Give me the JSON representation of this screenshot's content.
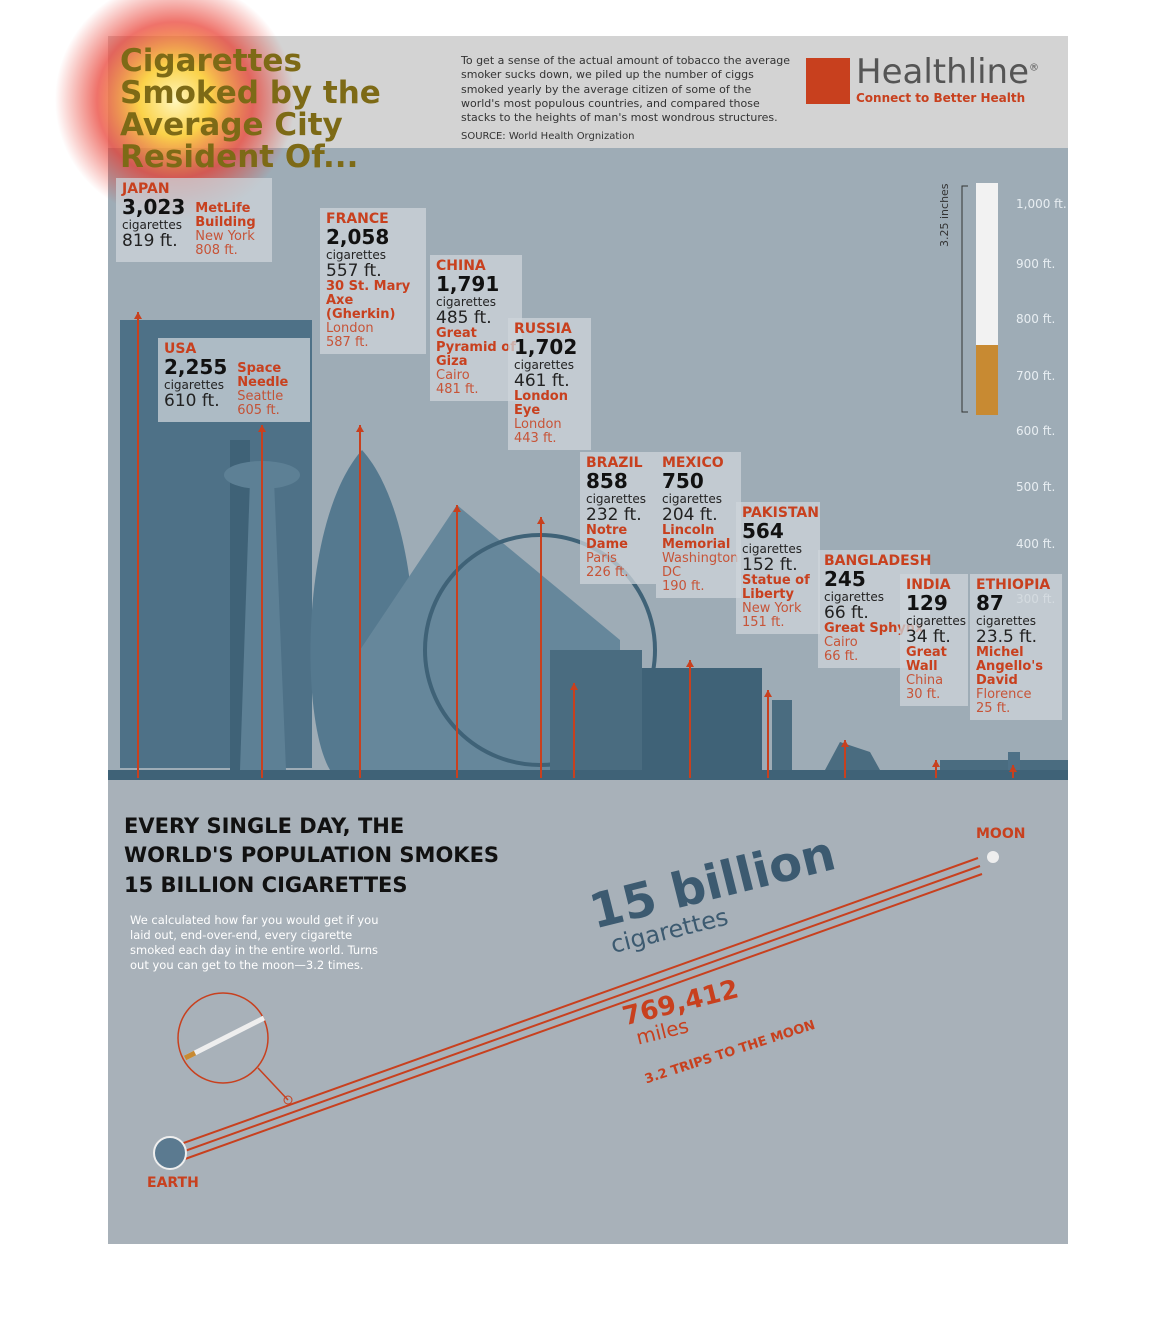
{
  "header": {
    "title": "Cigarettes Smoked by the Average City Resident Of...",
    "intro": "To get a sense of the actual amount of tobacco the average smoker sucks down, we piled up the number of ciggs smoked yearly by the average citizen of some of the world's most populous countries, and compared those stacks to the heights of man's most wondrous structures.",
    "source": "SOURCE: World Health Orgnization",
    "brand": "Healthline",
    "brand_mark": "®",
    "tagline": "Connect to Better Health"
  },
  "scale": {
    "label": "3.25 inches",
    "ticks": [
      "1,000 ft.",
      "900 ft.",
      "800 ft.",
      "700 ft.",
      "600 ft.",
      "500 ft.",
      "400 ft.",
      "300 ft."
    ]
  },
  "countries": [
    {
      "name": "JAPAN",
      "count": "3,023",
      "unit": "cigarettes",
      "height": "819 ft.",
      "landmark": "MetLife Building",
      "city": "New York",
      "landmark_height": "808 ft."
    },
    {
      "name": "USA",
      "count": "2,255",
      "unit": "cigarettes",
      "height": "610 ft.",
      "landmark": "Space Needle",
      "city": "Seattle",
      "landmark_height": "605 ft."
    },
    {
      "name": "FRANCE",
      "count": "2,058",
      "unit": "cigarettes",
      "height": "557 ft.",
      "landmark": "30 St. Mary Axe (Gherkin)",
      "city": "London",
      "landmark_height": "587 ft."
    },
    {
      "name": "CHINA",
      "count": "1,791",
      "unit": "cigarettes",
      "height": "485 ft.",
      "landmark": "Great Pyramid of Giza",
      "city": "Cairo",
      "landmark_height": "481 ft."
    },
    {
      "name": "RUSSIA",
      "count": "1,702",
      "unit": "cigarettes",
      "height": "461 ft.",
      "landmark": "London Eye",
      "city": "London",
      "landmark_height": "443 ft."
    },
    {
      "name": "BRAZIL",
      "count": "858",
      "unit": "cigarettes",
      "height": "232 ft.",
      "landmark": "Notre Dame",
      "city": "Paris",
      "landmark_height": "226 ft."
    },
    {
      "name": "MEXICO",
      "count": "750",
      "unit": "cigarettes",
      "height": "204 ft.",
      "landmark": "Lincoln Memorial",
      "city": "Washington DC",
      "landmark_height": "190 ft."
    },
    {
      "name": "PAKISTAN",
      "count": "564",
      "unit": "cigarettes",
      "height": "152 ft.",
      "landmark": "Statue of Liberty",
      "city": "New York",
      "landmark_height": "151 ft."
    },
    {
      "name": "BANGLADESH",
      "count": "245",
      "unit": "cigarettes",
      "height": "66 ft.",
      "landmark": "Great Sphynx",
      "city": "Cairo",
      "landmark_height": "66 ft."
    },
    {
      "name": "INDIA",
      "count": "129",
      "unit": "cigarettes",
      "height": "34 ft.",
      "landmark": "Great Wall",
      "city": "China",
      "landmark_height": "30 ft."
    },
    {
      "name": "ETHIOPIA",
      "count": "87",
      "unit": "cigarettes",
      "height": "23.5 ft.",
      "landmark": "Michel Angello's David",
      "city": "Florence",
      "landmark_height": "25 ft."
    }
  ],
  "daily": {
    "headline": [
      "EVERY SINGLE DAY, THE",
      "WORLD'S  POPULATION SMOKES",
      "15 BILLION CIGARETTES"
    ],
    "text": "We calculated how far you would get if you laid out, end-over-end, every cigarette smoked each day in the entire world. Turns out you can get to the moon—3.2 times.",
    "big": "15 billion",
    "big_unit": "cigarettes",
    "distance": "769,412",
    "distance_unit": "miles",
    "trips": "3.2 TRIPS TO THE MOON",
    "moon": "MOON",
    "earth": "EARTH"
  }
}
